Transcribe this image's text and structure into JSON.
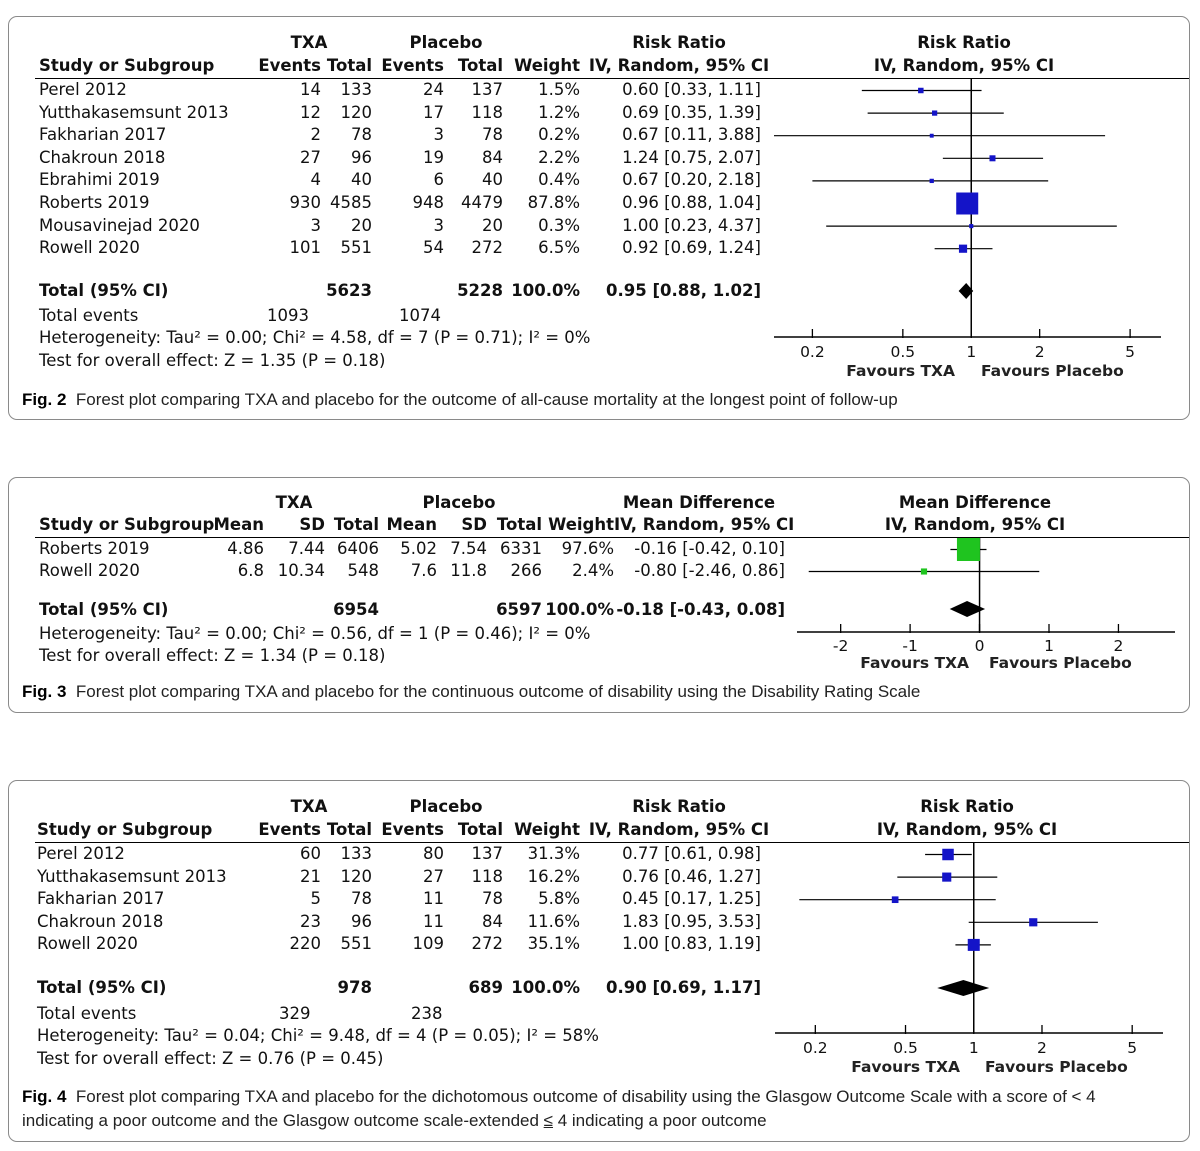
{
  "chart_data": [
    {
      "type": "forest",
      "figure_label": "Fig. 2",
      "caption": "Forest plot comparing TXA and placebo for the outcome of all-cause mortality at the longest point of follow-up",
      "group_headers": [
        "TXA",
        "Placebo"
      ],
      "effect_header": "Risk Ratio",
      "effect_method": "IV, Random, 95% CI",
      "plot_header": "Risk Ratio",
      "plot_method": "IV, Random, 95% CI",
      "col_headers": [
        "Study or Subgroup",
        "Events",
        "Total",
        "Events",
        "Total",
        "Weight",
        "IV, Random, 95% CI"
      ],
      "scale": "log",
      "axis_ticks": [
        0.2,
        0.5,
        1,
        2,
        5
      ],
      "axis_tick_labels": [
        "0.2",
        "0.5",
        "1",
        "2",
        "5"
      ],
      "axis_range": [
        0.15,
        6.7
      ],
      "null_value": 1,
      "marker_color": "#1414c8",
      "favours_left": "Favours TXA",
      "favours_right": "Favours Placebo",
      "studies": [
        {
          "name": "Perel 2012",
          "cols": [
            "14",
            "133",
            "24",
            "137",
            "1.5%",
            "0.60 [0.33, 1.11]"
          ],
          "est": 0.6,
          "lo": 0.33,
          "hi": 1.11,
          "weight": 1.5
        },
        {
          "name": "Yutthakasemsunt 2013",
          "cols": [
            "12",
            "120",
            "17",
            "118",
            "1.2%",
            "0.69 [0.35, 1.39]"
          ],
          "est": 0.69,
          "lo": 0.35,
          "hi": 1.39,
          "weight": 1.2
        },
        {
          "name": "Fakharian 2017",
          "cols": [
            "2",
            "78",
            "3",
            "78",
            "0.2%",
            "0.67 [0.11, 3.88]"
          ],
          "est": 0.67,
          "lo": 0.11,
          "hi": 3.88,
          "weight": 0.2
        },
        {
          "name": "Chakroun 2018",
          "cols": [
            "27",
            "96",
            "19",
            "84",
            "2.2%",
            "1.24 [0.75, 2.07]"
          ],
          "est": 1.24,
          "lo": 0.75,
          "hi": 2.07,
          "weight": 2.2
        },
        {
          "name": "Ebrahimi 2019",
          "cols": [
            "4",
            "40",
            "6",
            "40",
            "0.4%",
            "0.67 [0.20, 2.18]"
          ],
          "est": 0.67,
          "lo": 0.2,
          "hi": 2.18,
          "weight": 0.4
        },
        {
          "name": "Roberts 2019",
          "cols": [
            "930",
            "4585",
            "948",
            "4479",
            "87.8%",
            "0.96 [0.88, 1.04]"
          ],
          "est": 0.96,
          "lo": 0.88,
          "hi": 1.04,
          "weight": 87.8
        },
        {
          "name": "Mousavinejad 2020",
          "cols": [
            "3",
            "20",
            "3",
            "20",
            "0.3%",
            "1.00 [0.23, 4.37]"
          ],
          "est": 1.0,
          "lo": 0.23,
          "hi": 4.37,
          "weight": 0.3
        },
        {
          "name": "Rowell 2020",
          "cols": [
            "101",
            "551",
            "54",
            "272",
            "6.5%",
            "0.92 [0.69, 1.24]"
          ],
          "est": 0.92,
          "lo": 0.69,
          "hi": 1.24,
          "weight": 6.5
        }
      ],
      "total": {
        "name": "Total (95% CI)",
        "cols": [
          "",
          "5623",
          "",
          "5228",
          "100.0%",
          "0.95 [0.88, 1.02]"
        ],
        "est": 0.95,
        "lo": 0.88,
        "hi": 1.02
      },
      "total_events": {
        "label": "Total events",
        "txa": "1093",
        "placebo": "1074"
      },
      "heterogeneity": "Heterogeneity: Tau² = 0.00; Chi² = 4.58, df = 7 (P = 0.71); I² = 0%",
      "overall_effect": "Test for overall effect: Z = 1.35 (P = 0.18)"
    },
    {
      "type": "forest",
      "figure_label": "Fig. 3",
      "caption": "Forest plot comparing TXA and placebo for the continuous outcome of disability using the Disability Rating Scale",
      "group_headers": [
        "TXA",
        "Placebo"
      ],
      "effect_header": "Mean Difference",
      "effect_method": "IV, Random, 95% CI",
      "plot_header": "Mean Difference",
      "plot_method": "IV, Random, 95% CI",
      "col_headers": [
        "Study or Subgroup",
        "Mean",
        "SD",
        "Total",
        "Mean",
        "SD",
        "Total",
        "Weight",
        "IV, Random, 95% CI"
      ],
      "scale": "linear",
      "axis_ticks": [
        -2,
        -1,
        0,
        1,
        2
      ],
      "axis_tick_labels": [
        "-2",
        "-1",
        "0",
        "1",
        "2"
      ],
      "axis_range": [
        -2.6,
        2.8
      ],
      "null_value": 0,
      "marker_color": "#1fc41f",
      "favours_left": "Favours TXA",
      "favours_right": "Favours Placebo",
      "studies": [
        {
          "name": "Roberts 2019",
          "cols": [
            "4.86",
            "7.44",
            "6406",
            "5.02",
            "7.54",
            "6331",
            "97.6%",
            "-0.16 [-0.42, 0.10]"
          ],
          "est": -0.16,
          "lo": -0.42,
          "hi": 0.1,
          "weight": 97.6
        },
        {
          "name": "Rowell 2020",
          "cols": [
            "6.8",
            "10.34",
            "548",
            "7.6",
            "11.8",
            "266",
            "2.4%",
            "-0.80 [-2.46, 0.86]"
          ],
          "est": -0.8,
          "lo": -2.46,
          "hi": 0.86,
          "weight": 2.4
        }
      ],
      "total": {
        "name": "Total (95% CI)",
        "cols": [
          "",
          "",
          "6954",
          "",
          "",
          "6597",
          "100.0%",
          "-0.18 [-0.43, 0.08]"
        ],
        "est": -0.18,
        "lo": -0.43,
        "hi": 0.08
      },
      "heterogeneity": "Heterogeneity: Tau² = 0.00; Chi² = 0.56, df = 1 (P = 0.46); I² = 0%",
      "overall_effect": "Test for overall effect: Z = 1.34 (P = 0.18)"
    },
    {
      "type": "forest",
      "figure_label": "Fig. 4",
      "caption_pre": "Forest plot comparing TXA and placebo for the dichotomous outcome of disability using the Glasgow Outcome Scale with a score of < 4 indicating a poor outcome and the Glasgow outcome scale-extended ",
      "caption_symbol": "≤",
      "caption_post": " 4 indicating a poor outcome",
      "group_headers": [
        "TXA",
        "Placebo"
      ],
      "effect_header": "Risk Ratio",
      "effect_method": "IV, Random, 95% CI",
      "plot_header": "Risk Ratio",
      "plot_method": "IV, Random, 95% CI",
      "col_headers": [
        "Study or Subgroup",
        "Events",
        "Total",
        "Events",
        "Total",
        "Weight",
        "IV, Random, 95% CI"
      ],
      "scale": "log",
      "axis_ticks": [
        0.2,
        0.5,
        1,
        2,
        5
      ],
      "axis_tick_labels": [
        "0.2",
        "0.5",
        "1",
        "2",
        "5"
      ],
      "axis_range": [
        0.15,
        6.7
      ],
      "null_value": 1,
      "marker_color": "#1414c8",
      "favours_left": "Favours TXA",
      "favours_right": "Favours Placebo",
      "studies": [
        {
          "name": "Perel 2012",
          "cols": [
            "60",
            "133",
            "80",
            "137",
            "31.3%",
            "0.77 [0.61, 0.98]"
          ],
          "est": 0.77,
          "lo": 0.61,
          "hi": 0.98,
          "weight": 31.3
        },
        {
          "name": "Yutthakasemsunt 2013",
          "cols": [
            "21",
            "120",
            "27",
            "118",
            "16.2%",
            "0.76 [0.46, 1.27]"
          ],
          "est": 0.76,
          "lo": 0.46,
          "hi": 1.27,
          "weight": 16.2
        },
        {
          "name": "Fakharian 2017",
          "cols": [
            "5",
            "78",
            "11",
            "78",
            "5.8%",
            "0.45 [0.17, 1.25]"
          ],
          "est": 0.45,
          "lo": 0.17,
          "hi": 1.25,
          "weight": 5.8
        },
        {
          "name": "Chakroun 2018",
          "cols": [
            "23",
            "96",
            "11",
            "84",
            "11.6%",
            "1.83 [0.95, 3.53]"
          ],
          "est": 1.83,
          "lo": 0.95,
          "hi": 3.53,
          "weight": 11.6
        },
        {
          "name": "Rowell 2020",
          "cols": [
            "220",
            "551",
            "109",
            "272",
            "35.1%",
            "1.00 [0.83, 1.19]"
          ],
          "est": 1.0,
          "lo": 0.83,
          "hi": 1.19,
          "weight": 35.1
        }
      ],
      "total": {
        "name": "Total (95% CI)",
        "cols": [
          "",
          "978",
          "",
          "689",
          "100.0%",
          "0.90 [0.69, 1.17]"
        ],
        "est": 0.9,
        "lo": 0.69,
        "hi": 1.17
      },
      "total_events": {
        "label": "Total events",
        "txa": "329",
        "placebo": "238"
      },
      "heterogeneity": "Heterogeneity: Tau² = 0.04; Chi² = 9.48, df = 4 (P = 0.05); I² = 58%",
      "overall_effect": "Test for overall effect: Z = 0.76 (P = 0.45)"
    }
  ]
}
